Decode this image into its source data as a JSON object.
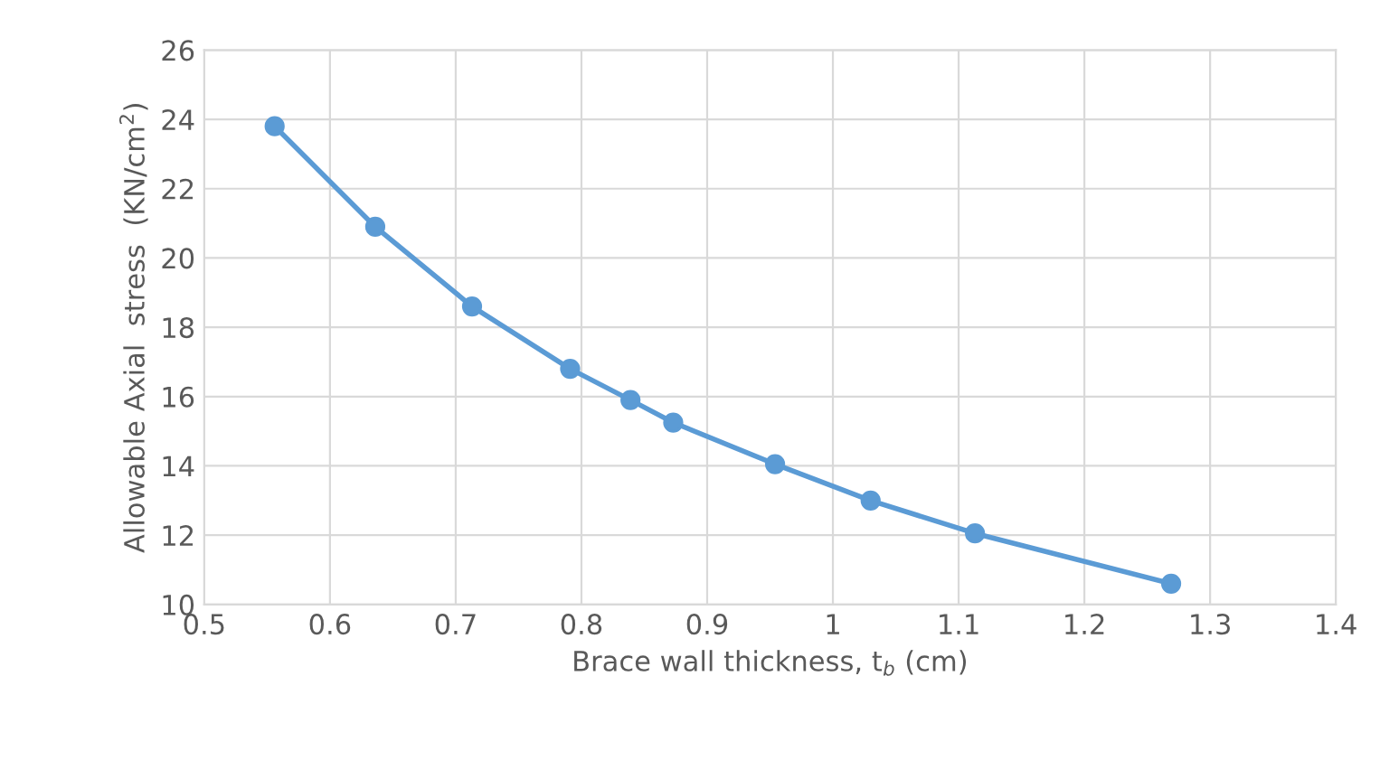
{
  "chart_data": {
    "type": "line",
    "xlabel": "Brace wall thickness, t$_{b}$ (cm)",
    "ylabel": "Allowable Axial  stress  (KN/cm$^{2}$)",
    "x": [
      0.556,
      0.636,
      0.713,
      0.791,
      0.839,
      0.873,
      0.954,
      1.03,
      1.113,
      1.269
    ],
    "series": [
      {
        "color": "#5b9bd5",
        "values": [
          23.8,
          20.9,
          18.6,
          16.8,
          15.9,
          15.25,
          14.05,
          13.0,
          12.05,
          10.6
        ]
      }
    ],
    "xlim": [
      0.5,
      1.4
    ],
    "xticks": [
      0.5,
      0.6,
      0.7,
      0.8,
      0.9,
      1,
      1.1,
      1.2,
      1.3,
      1.4
    ],
    "ylim": [
      10,
      26
    ],
    "yticks": [
      10,
      12,
      14,
      16,
      18,
      20,
      22,
      24,
      26
    ],
    "grid": true,
    "marker": "circle",
    "line_style": "solid"
  }
}
